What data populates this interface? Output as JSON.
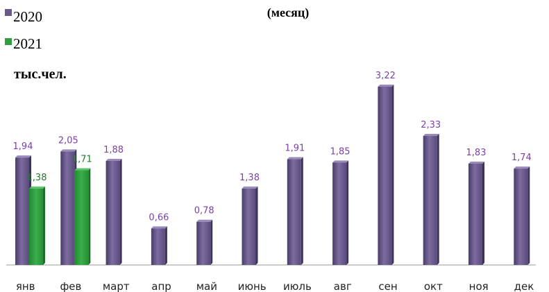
{
  "chart_data": {
    "type": "bar",
    "title": "(месяц)",
    "ylabel": "тыс.чел.",
    "xlabel": "",
    "categories": [
      "янв",
      "фев",
      "март",
      "апр",
      "май",
      "июнь",
      "июль",
      "авг",
      "сен",
      "окт",
      "ноя",
      "дек"
    ],
    "series": [
      {
        "name": "2020",
        "color": "#6a5a8c",
        "label_color": "#7b3fa6",
        "values": [
          1.94,
          2.05,
          1.88,
          0.66,
          0.78,
          1.38,
          1.91,
          1.85,
          3.22,
          2.33,
          1.83,
          1.74
        ],
        "labels": [
          "1,94",
          "2,05",
          "1,88",
          "0,66",
          "0,78",
          "1,38",
          "1,91",
          "1,85",
          "3,22",
          "2,33",
          "1,83",
          "1,74"
        ]
      },
      {
        "name": "2021",
        "color": "#2e9e3e",
        "label_color": "#1e7a2e",
        "values": [
          1.38,
          1.71,
          null,
          null,
          null,
          null,
          null,
          null,
          null,
          null,
          null,
          null
        ],
        "labels": [
          "1,38",
          "1,71",
          null,
          null,
          null,
          null,
          null,
          null,
          null,
          null,
          null,
          null
        ]
      }
    ],
    "ylim": [
      0,
      3.5
    ],
    "legend_position": "top-left",
    "grid": false
  }
}
